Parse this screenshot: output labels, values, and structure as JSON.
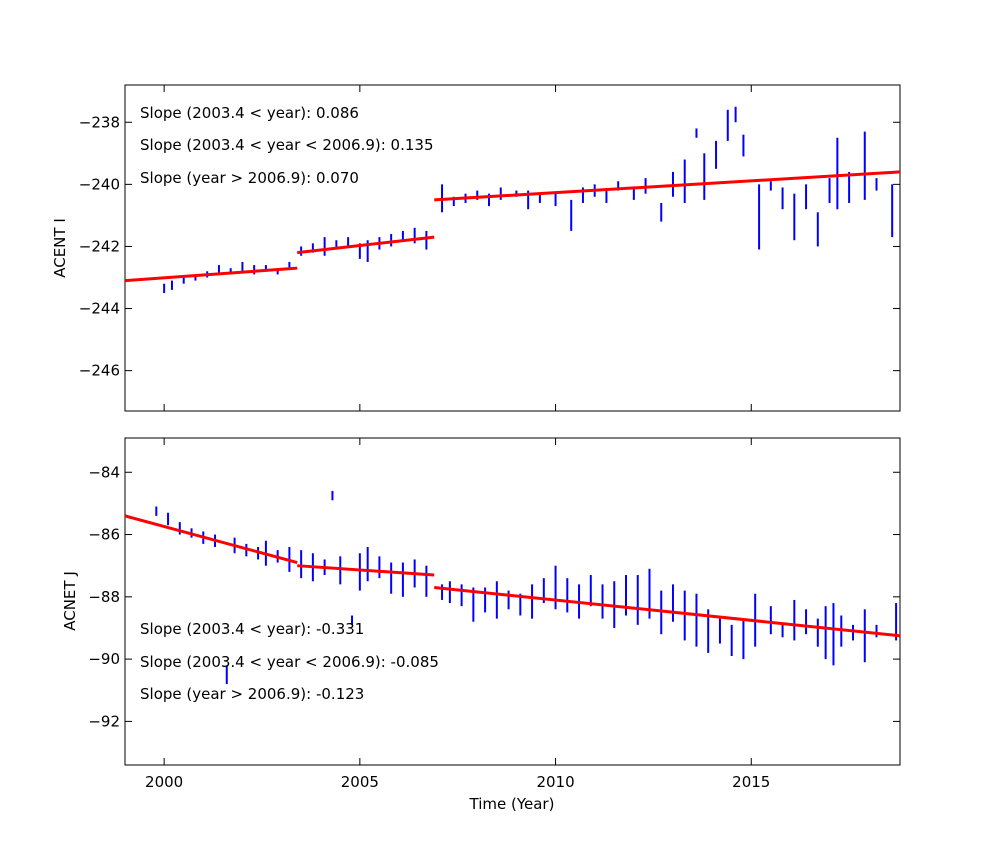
{
  "chart_data": [
    {
      "type": "line",
      "ylabel": "ACENT I",
      "xlabel": "",
      "xlim": [
        1999.0,
        2018.8
      ],
      "ylim": [
        -247.3,
        -236.8
      ],
      "xticks": [
        2000,
        2005,
        2010,
        2015
      ],
      "yticks": [
        -238,
        -240,
        -242,
        -244,
        -246
      ],
      "ytick_labels": [
        "−238",
        "−240",
        "−242",
        "−244",
        "−246"
      ],
      "annotations": [
        "Slope (2003.4 < year):  0.086",
        "Slope (2003.4 <  year < 2006.9): 0.135",
        "Slope (year > 2006.9):  0.070"
      ],
      "series": [
        {
          "kind": "data",
          "color": "#0000ff",
          "points": [
            [
              2000.0,
              -243.5,
              -243.2
            ],
            [
              2000.2,
              -243.4,
              -243.1
            ],
            [
              2000.5,
              -243.2,
              -243.0
            ],
            [
              2000.8,
              -243.1,
              -242.9
            ],
            [
              2001.1,
              -243.0,
              -242.8
            ],
            [
              2001.4,
              -242.9,
              -242.6
            ],
            [
              2001.7,
              -242.9,
              -242.7
            ],
            [
              2002.0,
              -242.8,
              -242.5
            ],
            [
              2002.3,
              -242.9,
              -242.6
            ],
            [
              2002.6,
              -242.8,
              -242.6
            ],
            [
              2002.9,
              -242.9,
              -242.7
            ],
            [
              2003.2,
              -242.7,
              -242.5
            ],
            [
              2003.5,
              -242.3,
              -242.0
            ],
            [
              2003.8,
              -242.2,
              -241.9
            ],
            [
              2004.1,
              -242.3,
              -241.7
            ],
            [
              2004.4,
              -242.1,
              -241.8
            ],
            [
              2004.7,
              -242.0,
              -241.7
            ],
            [
              2005.0,
              -242.4,
              -241.9
            ],
            [
              2005.2,
              -242.5,
              -241.8
            ],
            [
              2005.5,
              -242.1,
              -241.7
            ],
            [
              2005.8,
              -242.0,
              -241.6
            ],
            [
              2006.1,
              -241.8,
              -241.5
            ],
            [
              2006.4,
              -241.9,
              -241.4
            ],
            [
              2006.7,
              -242.1,
              -241.5
            ],
            [
              2007.1,
              -240.9,
              -240.0
            ],
            [
              2007.4,
              -240.7,
              -240.4
            ],
            [
              2007.7,
              -240.6,
              -240.3
            ],
            [
              2008.0,
              -240.5,
              -240.2
            ],
            [
              2008.3,
              -240.7,
              -240.3
            ],
            [
              2008.6,
              -240.5,
              -240.1
            ],
            [
              2009.0,
              -240.4,
              -240.2
            ],
            [
              2009.3,
              -240.8,
              -240.2
            ],
            [
              2009.6,
              -240.6,
              -240.3
            ],
            [
              2010.0,
              -240.7,
              -240.3
            ],
            [
              2010.4,
              -241.5,
              -240.5
            ],
            [
              2010.7,
              -240.6,
              -240.1
            ],
            [
              2011.0,
              -240.4,
              -240.0
            ],
            [
              2011.3,
              -240.6,
              -240.2
            ],
            [
              2011.6,
              -240.2,
              -239.9
            ],
            [
              2012.0,
              -240.5,
              -240.1
            ],
            [
              2012.3,
              -240.3,
              -239.8
            ],
            [
              2012.7,
              -241.2,
              -240.6
            ],
            [
              2013.0,
              -240.4,
              -239.6
            ],
            [
              2013.3,
              -240.6,
              -239.2
            ],
            [
              2013.6,
              -238.5,
              -238.2
            ],
            [
              2013.8,
              -240.5,
              -239.0
            ],
            [
              2014.1,
              -239.5,
              -238.6
            ],
            [
              2014.4,
              -238.6,
              -237.6
            ],
            [
              2014.6,
              -238.0,
              -237.5
            ],
            [
              2014.8,
              -239.1,
              -238.4
            ],
            [
              2015.2,
              -242.1,
              -240.0
            ],
            [
              2015.5,
              -240.2,
              -239.9
            ],
            [
              2015.8,
              -240.8,
              -240.1
            ],
            [
              2016.1,
              -241.8,
              -240.3
            ],
            [
              2016.4,
              -240.8,
              -240.0
            ],
            [
              2016.7,
              -242.0,
              -240.9
            ],
            [
              2017.0,
              -240.6,
              -239.8
            ],
            [
              2017.2,
              -240.8,
              -238.5
            ],
            [
              2017.5,
              -240.6,
              -239.6
            ],
            [
              2017.9,
              -240.5,
              -238.3
            ],
            [
              2018.2,
              -240.2,
              -239.8
            ],
            [
              2018.6,
              -241.7,
              -240.0
            ]
          ]
        },
        {
          "kind": "fit",
          "color": "#ff0000",
          "segments": [
            [
              [
                1999.0,
                -243.1
              ],
              [
                2003.4,
                -242.7
              ]
            ],
            [
              [
                2003.4,
                -242.2
              ],
              [
                2006.9,
                -241.7
              ]
            ],
            [
              [
                2006.9,
                -240.5
              ],
              [
                2018.8,
                -239.6
              ]
            ]
          ]
        }
      ]
    },
    {
      "type": "line",
      "ylabel": "ACNET J",
      "xlabel": "Time (Year)",
      "xlim": [
        1999.0,
        2018.8
      ],
      "ylim": [
        -93.4,
        -82.9
      ],
      "xticks": [
        2000,
        2005,
        2010,
        2015
      ],
      "xtick_labels": [
        "2000",
        "2005",
        "2010",
        "2015"
      ],
      "yticks": [
        -84,
        -86,
        -88,
        -90,
        -92
      ],
      "ytick_labels": [
        "−84",
        "−86",
        "−88",
        "−90",
        "−92"
      ],
      "annotations": [
        "Slope (2003.4 < year): -0.331",
        "Slope (2003.4 <  year < 2006.9): -0.085",
        "Slope (year > 2006.9):  -0.123"
      ],
      "series": [
        {
          "kind": "data",
          "color": "#0000ff",
          "points": [
            [
              1999.8,
              -85.4,
              -85.1
            ],
            [
              2000.1,
              -85.7,
              -85.3
            ],
            [
              2000.4,
              -86.0,
              -85.6
            ],
            [
              2000.7,
              -86.1,
              -85.8
            ],
            [
              2001.0,
              -86.3,
              -85.9
            ],
            [
              2001.3,
              -86.4,
              -86.0
            ],
            [
              2001.6,
              -90.8,
              -90.2
            ],
            [
              2001.8,
              -86.6,
              -86.1
            ],
            [
              2002.1,
              -86.7,
              -86.3
            ],
            [
              2002.4,
              -86.8,
              -86.4
            ],
            [
              2002.6,
              -87.0,
              -86.2
            ],
            [
              2002.9,
              -86.9,
              -86.5
            ],
            [
              2003.2,
              -87.2,
              -86.4
            ],
            [
              2003.5,
              -87.4,
              -86.5
            ],
            [
              2003.8,
              -87.5,
              -86.6
            ],
            [
              2004.1,
              -87.3,
              -86.8
            ],
            [
              2004.3,
              -84.9,
              -84.6
            ],
            [
              2004.5,
              -87.6,
              -86.7
            ],
            [
              2004.8,
              -88.9,
              -88.6
            ],
            [
              2005.0,
              -87.8,
              -86.6
            ],
            [
              2005.2,
              -87.5,
              -86.4
            ],
            [
              2005.5,
              -87.4,
              -86.7
            ],
            [
              2005.8,
              -87.9,
              -86.9
            ],
            [
              2006.1,
              -88.0,
              -86.9
            ],
            [
              2006.4,
              -87.7,
              -86.8
            ],
            [
              2006.7,
              -88.0,
              -87.0
            ],
            [
              2007.1,
              -88.1,
              -87.6
            ],
            [
              2007.3,
              -88.2,
              -87.5
            ],
            [
              2007.6,
              -88.3,
              -87.6
            ],
            [
              2007.9,
              -88.8,
              -87.7
            ],
            [
              2008.2,
              -88.5,
              -87.7
            ],
            [
              2008.5,
              -88.7,
              -87.5
            ],
            [
              2008.8,
              -88.4,
              -87.8
            ],
            [
              2009.1,
              -88.6,
              -87.9
            ],
            [
              2009.4,
              -88.7,
              -87.6
            ],
            [
              2009.7,
              -88.2,
              -87.4
            ],
            [
              2010.0,
              -88.4,
              -87.0
            ],
            [
              2010.3,
              -88.5,
              -87.4
            ],
            [
              2010.6,
              -88.7,
              -87.6
            ],
            [
              2010.9,
              -88.3,
              -87.3
            ],
            [
              2011.2,
              -88.7,
              -87.6
            ],
            [
              2011.5,
              -89.0,
              -87.5
            ],
            [
              2011.8,
              -88.6,
              -87.3
            ],
            [
              2012.1,
              -88.9,
              -87.3
            ],
            [
              2012.4,
              -88.7,
              -87.1
            ],
            [
              2012.7,
              -89.2,
              -87.8
            ],
            [
              2013.0,
              -88.8,
              -87.6
            ],
            [
              2013.3,
              -89.4,
              -87.8
            ],
            [
              2013.6,
              -89.6,
              -87.9
            ],
            [
              2013.9,
              -89.8,
              -88.4
            ],
            [
              2014.2,
              -89.5,
              -88.7
            ],
            [
              2014.5,
              -89.9,
              -88.9
            ],
            [
              2014.8,
              -90.0,
              -88.7
            ],
            [
              2015.1,
              -89.6,
              -87.9
            ],
            [
              2015.5,
              -89.2,
              -88.3
            ],
            [
              2015.8,
              -89.3,
              -88.9
            ],
            [
              2016.1,
              -89.4,
              -88.1
            ],
            [
              2016.4,
              -89.2,
              -88.4
            ],
            [
              2016.7,
              -89.6,
              -88.7
            ],
            [
              2016.9,
              -90.0,
              -88.3
            ],
            [
              2017.1,
              -90.2,
              -88.2
            ],
            [
              2017.3,
              -89.6,
              -88.6
            ],
            [
              2017.6,
              -89.4,
              -88.9
            ],
            [
              2017.9,
              -90.1,
              -88.4
            ],
            [
              2018.2,
              -89.3,
              -88.9
            ],
            [
              2018.7,
              -89.4,
              -88.2
            ]
          ]
        },
        {
          "kind": "fit",
          "color": "#ff0000",
          "segments": [
            [
              [
                1999.0,
                -85.4
              ],
              [
                2003.4,
                -86.9
              ]
            ],
            [
              [
                2003.4,
                -87.0
              ],
              [
                2006.9,
                -87.3
              ]
            ],
            [
              [
                2006.9,
                -87.7
              ],
              [
                2018.8,
                -89.25
              ]
            ]
          ]
        }
      ]
    }
  ]
}
